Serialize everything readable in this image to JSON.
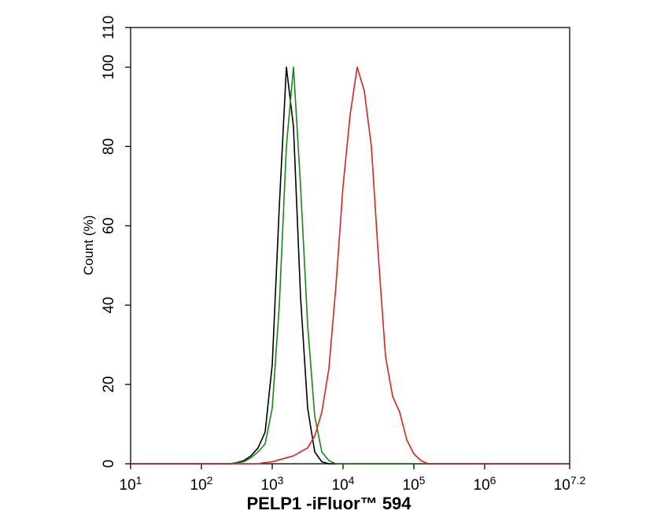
{
  "chart_data": {
    "type": "line",
    "xlabel": "PELP1 -iFluor™ 594",
    "ylabel": "Count  (%)",
    "xscale": "log",
    "xlim": [
      10,
      15848932
    ],
    "xticks": [
      {
        "value": 10,
        "label": [
          "10",
          "1"
        ]
      },
      {
        "value": 100,
        "label": [
          "10",
          "2"
        ]
      },
      {
        "value": 1000,
        "label": [
          "10",
          "3"
        ]
      },
      {
        "value": 10000,
        "label": [
          "10",
          "4"
        ]
      },
      {
        "value": 100000,
        "label": [
          "10",
          "5"
        ]
      },
      {
        "value": 1000000,
        "label": [
          "10",
          "6"
        ]
      },
      {
        "value": 15848932,
        "label": [
          "10",
          "7.2"
        ]
      }
    ],
    "ylim": [
      0,
      110
    ],
    "yticks": [
      0,
      20,
      40,
      60,
      80,
      100,
      110
    ],
    "x": [
      10,
      200,
      251,
      316,
      398,
      501,
      631,
      794,
      1000,
      1259,
      1585,
      1995,
      2512,
      3162,
      3981,
      5012,
      6310,
      7943,
      10000,
      12589,
      15849,
      19953,
      25119,
      31623,
      39811,
      50119,
      63096,
      79433,
      100000,
      125893,
      158489,
      199526,
      15848932
    ],
    "series": [
      {
        "color": "#000000",
        "values": [
          0,
          0,
          0,
          0.3,
          0.8,
          2,
          4,
          8,
          25,
          65,
          100,
          85,
          42,
          14,
          3,
          0.5,
          0,
          0,
          0,
          0,
          0,
          0,
          0,
          0,
          0,
          0,
          0,
          0,
          0,
          0,
          0,
          0,
          0
        ]
      },
      {
        "color": "#138a13",
        "values": [
          0,
          0,
          0,
          0.2,
          0.5,
          1.5,
          3,
          5,
          14,
          40,
          80,
          100,
          70,
          35,
          12,
          3,
          0.8,
          0,
          0,
          0,
          0,
          0,
          0,
          0,
          0,
          0,
          0,
          0,
          0,
          0,
          0,
          0,
          0
        ]
      },
      {
        "color": "#e3201b",
        "values": [
          0,
          0,
          0,
          0,
          0,
          0,
          0,
          0.3,
          0.5,
          1,
          1.5,
          2,
          3,
          4,
          7,
          13,
          24,
          45,
          70,
          88,
          100,
          94,
          80,
          52,
          27,
          17,
          13,
          6,
          2.5,
          0.8,
          0,
          0,
          0
        ]
      }
    ]
  }
}
